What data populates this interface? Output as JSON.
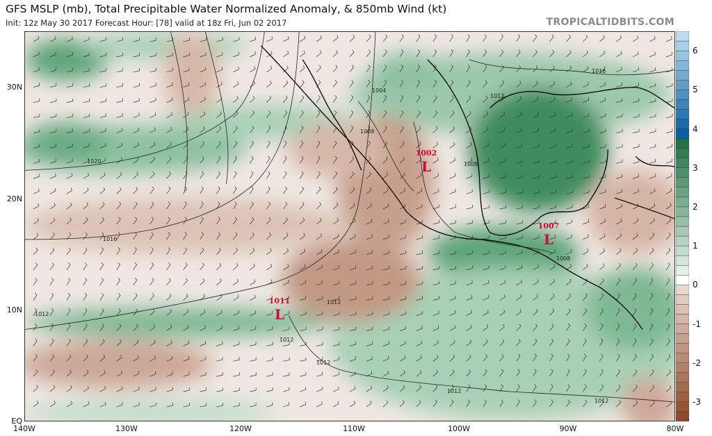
{
  "header": {
    "title": "GFS MSLP (mb), Total Precipitable Water Normalized Anomaly, & 850mb Wind (kt)",
    "subtitle": "Init: 12z May 30 2017   Forecast Hour: [78]   valid at 18z Fri, Jun 02 2017",
    "brand": "TROPICALTIDBITS.COM"
  },
  "axes": {
    "lat_labels": [
      "30N",
      "20N",
      "10N",
      "EQ"
    ],
    "lon_labels": [
      "140W",
      "130W",
      "120W",
      "110W",
      "100W",
      "90W",
      "80W"
    ]
  },
  "lows": [
    {
      "pressure": "1002",
      "symbol": "L"
    },
    {
      "pressure": "1007",
      "symbol": "L"
    },
    {
      "pressure": "1011",
      "symbol": "L"
    }
  ],
  "contour_labels": [
    "1004",
    "1008",
    "1008",
    "1016",
    "1012",
    "1020",
    "1016",
    "1012",
    "1012",
    "1012",
    "1012",
    "1012",
    "1012",
    "1008"
  ],
  "colorbar": {
    "ticks": [
      "6",
      "5",
      "4",
      "3",
      "2",
      "1",
      "0",
      "-1",
      "-2",
      "-3"
    ],
    "range": [
      -3.5,
      6.5
    ],
    "colors": {
      "max_blue": "#0a5f9e",
      "light_blue": "#cde8f6",
      "dark_green": "#14683a",
      "light_green": "#e3efe8",
      "zero": "#ffffff",
      "light_brown": "#efe2dc",
      "dark_brown": "#8e4a2a"
    }
  },
  "colors": {
    "green_anomaly": "#5fa57b",
    "brown_anomaly": "#c7a08d",
    "low_marker": "#c8102e"
  }
}
